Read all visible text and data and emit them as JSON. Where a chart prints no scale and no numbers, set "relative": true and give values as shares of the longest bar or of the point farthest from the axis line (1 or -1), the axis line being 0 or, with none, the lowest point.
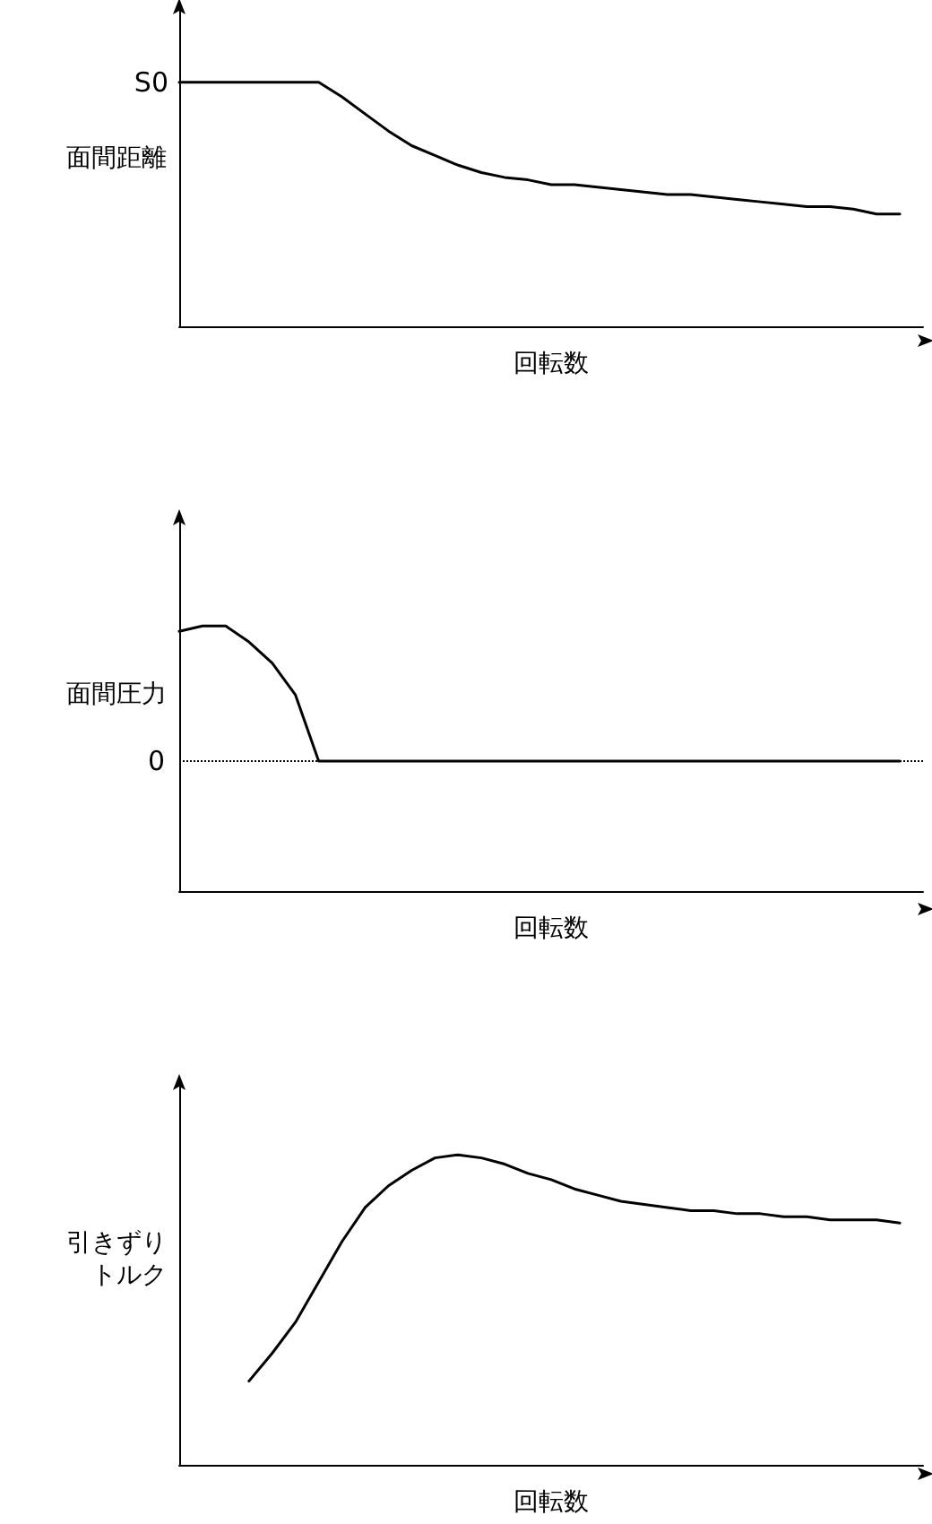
{
  "chart_data": [
    {
      "type": "line",
      "relative": true,
      "ylabel": "面間距離",
      "xlabel": "回転数",
      "tick_labels": false,
      "marker": "none",
      "line_style": "solid",
      "categories": [
        null,
        null,
        null,
        null,
        null,
        null,
        null,
        null,
        null,
        null,
        null,
        null,
        null,
        null,
        null,
        null,
        null,
        null,
        null,
        null,
        null,
        null,
        null,
        null,
        null,
        null,
        null,
        null,
        null,
        null,
        null,
        null,
        null
      ],
      "series": [
        {
          "color": "#000000",
          "values": [
            1,
            1,
            1,
            1,
            1,
            1,
            1,
            0.94,
            0.87,
            0.8,
            0.74,
            0.7,
            0.66,
            0.63,
            0.61,
            0.6,
            0.58,
            0.58,
            0.57,
            0.56,
            0.55,
            0.54,
            0.54,
            0.53,
            0.52,
            0.51,
            0.5,
            0.49,
            0.49,
            0.48,
            0.46,
            0.46,
            null
          ]
        }
      ],
      "annotations": [
        "S0"
      ]
    },
    {
      "type": "line",
      "relative": true,
      "ylabel": "面間圧力",
      "xlabel": "回転数",
      "tick_labels": false,
      "marker": "none",
      "line_style": "solid",
      "categories": [
        null,
        null,
        null,
        null,
        null,
        null,
        null,
        null,
        null,
        null,
        null,
        null,
        null,
        null,
        null,
        null,
        null,
        null,
        null,
        null,
        null,
        null,
        null,
        null,
        null,
        null,
        null,
        null,
        null,
        null,
        null,
        null,
        null
      ],
      "series": [
        {
          "color": "#000000",
          "values": [
            0.98,
            1,
            1,
            0.94,
            0.86,
            0.74,
            0.49,
            0.49,
            0.49,
            0.49,
            0.49,
            0.49,
            0.49,
            0.49,
            0.49,
            0.49,
            0.49,
            0.49,
            0.49,
            0.49,
            0.49,
            0.49,
            0.49,
            0.49,
            0.49,
            0.49,
            0.49,
            0.49,
            0.49,
            0.49,
            0.49,
            0.49,
            null
          ]
        }
      ],
      "ref_lines": [
        {
          "axis": "y",
          "value": 0.49,
          "label": "0",
          "line_style": "dotted"
        }
      ]
    },
    {
      "type": "line",
      "relative": true,
      "ylabel": "引きずりトルク",
      "xlabel": "回転数",
      "tick_labels": false,
      "marker": "none",
      "line_style": "solid",
      "categories": [
        null,
        null,
        null,
        null,
        null,
        null,
        null,
        null,
        null,
        null,
        null,
        null,
        null,
        null,
        null,
        null,
        null,
        null,
        null,
        null,
        null,
        null,
        null,
        null,
        null,
        null,
        null,
        null,
        null,
        null,
        null,
        null,
        null
      ],
      "series": [
        {
          "color": "#000000",
          "values": [
            null,
            null,
            null,
            0.27,
            0.36,
            0.46,
            0.59,
            0.72,
            0.83,
            0.9,
            0.95,
            0.99,
            1,
            0.99,
            0.97,
            0.94,
            0.92,
            0.89,
            0.87,
            0.85,
            0.84,
            0.83,
            0.82,
            0.82,
            0.81,
            0.81,
            0.8,
            0.8,
            0.79,
            0.79,
            0.79,
            0.78,
            null
          ]
        }
      ]
    }
  ]
}
